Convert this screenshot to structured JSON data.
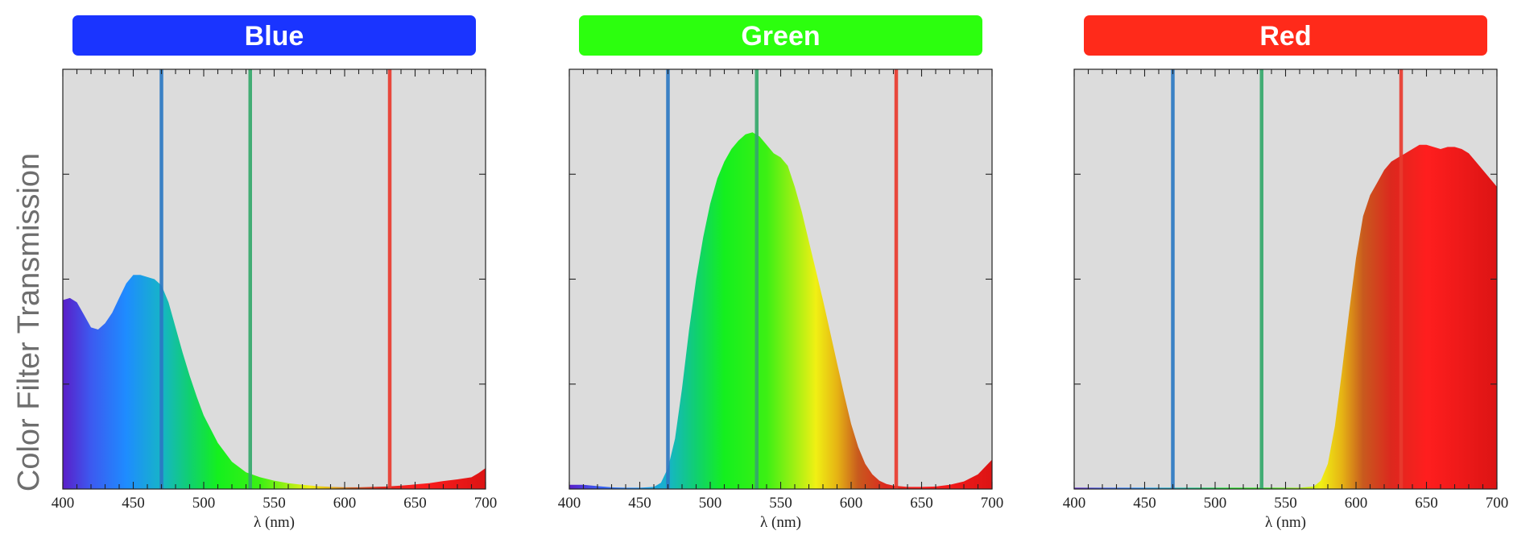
{
  "y_axis_label": "Color Filter Transmission",
  "chart_data": [
    {
      "type": "area",
      "title": "Blue",
      "banner_color": "#1a34ff",
      "xlabel": "λ (nm)",
      "ylabel": "Color Filter Transmission",
      "xlim": [
        400,
        700
      ],
      "ylim": [
        0,
        1.0
      ],
      "xticks": [
        400,
        450,
        500,
        550,
        600,
        650,
        700
      ],
      "grid": false,
      "legend": "none",
      "series": [
        {
          "x": [
            400,
            405,
            410,
            415,
            420,
            425,
            430,
            435,
            440,
            445,
            450,
            455,
            460,
            465,
            470,
            475,
            480,
            485,
            490,
            495,
            500,
            510,
            520,
            530,
            540,
            550,
            560,
            570,
            580,
            590,
            600,
            610,
            620,
            630,
            640,
            650,
            660,
            670,
            680,
            690,
            695,
            700
          ],
          "values": [
            0.45,
            0.455,
            0.445,
            0.415,
            0.385,
            0.38,
            0.395,
            0.42,
            0.455,
            0.49,
            0.51,
            0.51,
            0.505,
            0.5,
            0.485,
            0.445,
            0.385,
            0.325,
            0.27,
            0.22,
            0.175,
            0.11,
            0.065,
            0.04,
            0.028,
            0.02,
            0.014,
            0.01,
            0.007,
            0.005,
            0.004,
            0.004,
            0.005,
            0.006,
            0.008,
            0.011,
            0.014,
            0.019,
            0.023,
            0.028,
            0.038,
            0.05
          ]
        }
      ],
      "vertical_lines": [
        {
          "x": 470,
          "color": "#2b78c2"
        },
        {
          "x": 533,
          "color": "#34a86a"
        },
        {
          "x": 632,
          "color": "#e83a2e"
        }
      ]
    },
    {
      "type": "area",
      "title": "Green",
      "banner_color": "#2cff0e",
      "xlabel": "λ (nm)",
      "ylabel": "",
      "xlim": [
        400,
        700
      ],
      "ylim": [
        0,
        1.0
      ],
      "xticks": [
        400,
        450,
        500,
        550,
        600,
        650,
        700
      ],
      "grid": false,
      "legend": "none",
      "series": [
        {
          "x": [
            400,
            410,
            420,
            430,
            440,
            450,
            460,
            465,
            470,
            475,
            480,
            485,
            490,
            495,
            500,
            505,
            510,
            515,
            520,
            525,
            530,
            535,
            540,
            545,
            550,
            555,
            560,
            565,
            570,
            575,
            580,
            585,
            590,
            595,
            600,
            605,
            610,
            615,
            620,
            625,
            630,
            640,
            650,
            660,
            670,
            680,
            690,
            700
          ],
          "values": [
            0.01,
            0.01,
            0.007,
            0.004,
            0.003,
            0.003,
            0.005,
            0.015,
            0.05,
            0.12,
            0.24,
            0.38,
            0.5,
            0.6,
            0.68,
            0.74,
            0.78,
            0.81,
            0.83,
            0.845,
            0.85,
            0.84,
            0.82,
            0.8,
            0.79,
            0.77,
            0.72,
            0.66,
            0.59,
            0.52,
            0.45,
            0.375,
            0.3,
            0.225,
            0.155,
            0.1,
            0.06,
            0.035,
            0.02,
            0.012,
            0.008,
            0.005,
            0.005,
            0.006,
            0.01,
            0.018,
            0.035,
            0.07
          ]
        }
      ],
      "vertical_lines": [
        {
          "x": 470,
          "color": "#2b78c2"
        },
        {
          "x": 533,
          "color": "#34a86a"
        },
        {
          "x": 632,
          "color": "#e83a2e"
        }
      ]
    },
    {
      "type": "area",
      "title": "Red",
      "banner_color": "#ff2a1a",
      "xlabel": "λ (nm)",
      "ylabel": "",
      "xlim": [
        400,
        700
      ],
      "ylim": [
        0,
        1.0
      ],
      "xticks": [
        400,
        450,
        500,
        550,
        600,
        650,
        700
      ],
      "grid": false,
      "legend": "none",
      "series": [
        {
          "x": [
            400,
            420,
            440,
            460,
            480,
            500,
            520,
            540,
            560,
            570,
            575,
            580,
            585,
            590,
            595,
            600,
            605,
            610,
            615,
            620,
            625,
            630,
            635,
            640,
            645,
            650,
            655,
            660,
            665,
            670,
            675,
            680,
            685,
            690,
            695,
            700
          ],
          "values": [
            0.003,
            0.003,
            0.003,
            0.003,
            0.003,
            0.003,
            0.003,
            0.003,
            0.003,
            0.006,
            0.02,
            0.06,
            0.15,
            0.28,
            0.42,
            0.55,
            0.65,
            0.7,
            0.73,
            0.76,
            0.78,
            0.79,
            0.8,
            0.81,
            0.82,
            0.82,
            0.815,
            0.81,
            0.815,
            0.815,
            0.81,
            0.8,
            0.78,
            0.76,
            0.74,
            0.72
          ]
        }
      ],
      "vertical_lines": [
        {
          "x": 470,
          "color": "#2b78c2"
        },
        {
          "x": 533,
          "color": "#34a86a"
        },
        {
          "x": 632,
          "color": "#e83a2e"
        }
      ]
    }
  ],
  "colors": {
    "plot_background": "#dcdcdc",
    "axis": "#222222"
  }
}
